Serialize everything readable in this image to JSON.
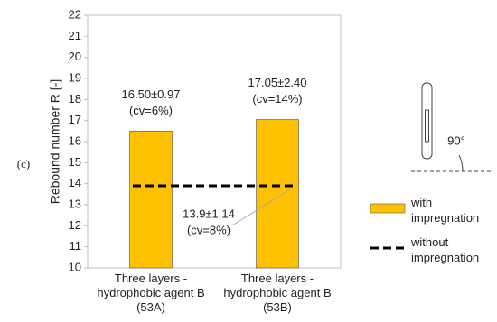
{
  "chart_data": {
    "type": "bar",
    "y_label": "Rebound number R [-]",
    "panel_label": "(c)",
    "icon_label": "90°",
    "categories": [
      "Three layers - hydrophobic agent B (53A)",
      "Three layers - hydrophobic agent B (53B)"
    ],
    "series": [
      {
        "name": "with impregnation",
        "type": "bar",
        "color": "#ffc000",
        "values": [
          16.5,
          17.05
        ],
        "value_labels": [
          "16.50±0.97",
          "17.05±2.40"
        ],
        "notes": [
          "(cv=6%)",
          "(cv=14%)"
        ]
      },
      {
        "name": "without impregnation",
        "type": "line",
        "color": "#000000",
        "dashed": true,
        "values": [
          13.9,
          13.9
        ],
        "value_labels": [
          "13.9±1.14",
          null
        ],
        "notes": [
          "(cv=8%)",
          null
        ]
      }
    ],
    "ylim": [
      10,
      22
    ],
    "yticks": [
      10,
      11,
      12,
      13,
      14,
      15,
      16,
      17,
      18,
      19,
      20,
      21,
      22
    ],
    "grid": false
  }
}
